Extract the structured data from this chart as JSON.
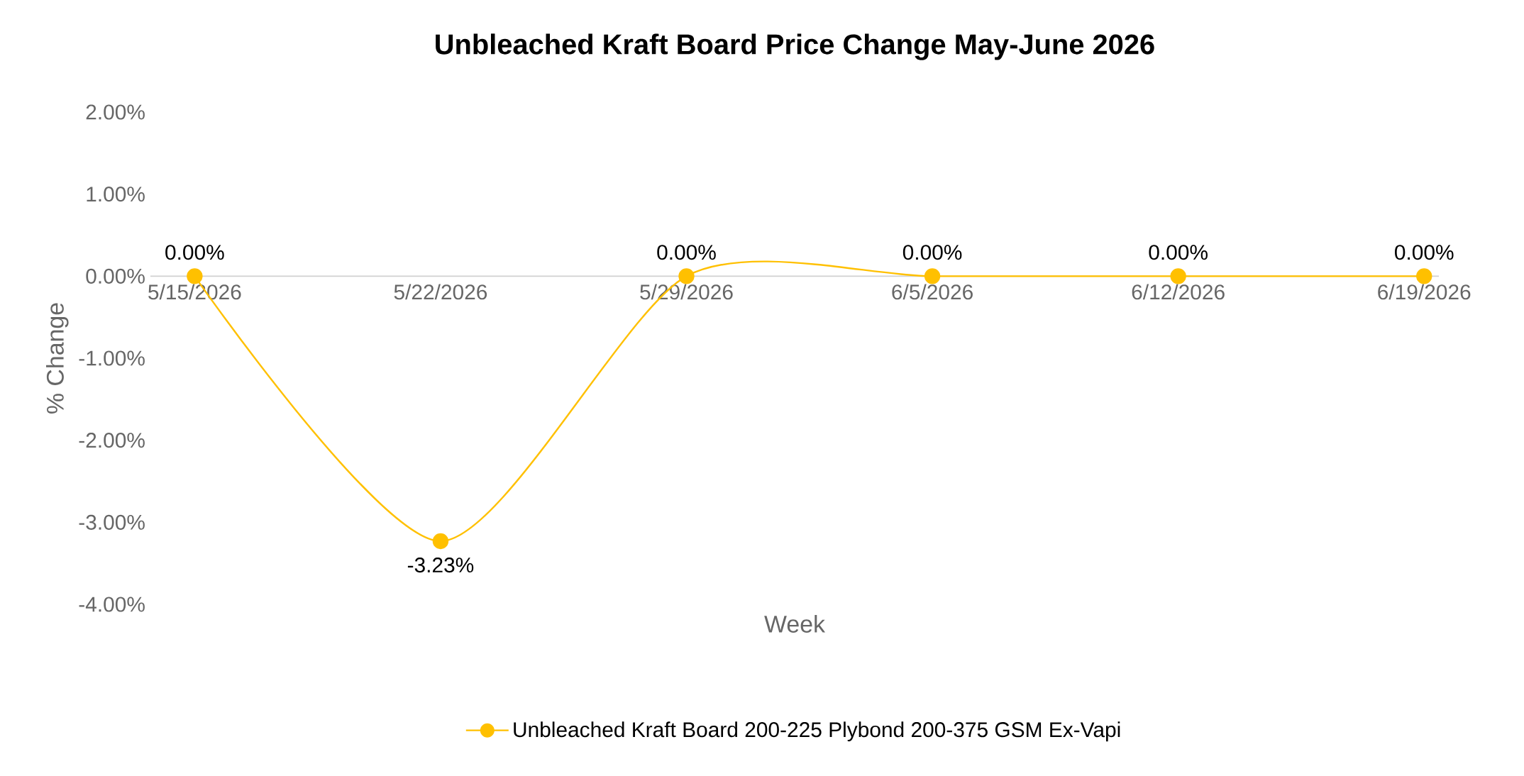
{
  "chart_data": {
    "type": "line",
    "title": "Unbleached Kraft Board Price Change May-June 2026",
    "xlabel": "Week",
    "ylabel": "% Change",
    "categories": [
      "5/15/2026",
      "5/22/2026",
      "5/29/2026",
      "6/5/2026",
      "6/12/2026",
      "6/19/2026"
    ],
    "series": [
      {
        "name": "Unbleached Kraft Board 200-225 Plybond 200-375 GSM Ex-Vapi",
        "color": "#ffc000",
        "values": [
          0,
          -3.23,
          0,
          0,
          0,
          0
        ],
        "value_labels": [
          "0.00%",
          "-3.23%",
          "0.00%",
          "0.00%",
          "0.00%",
          "0.00%"
        ]
      }
    ],
    "ylim": [
      -4,
      2
    ],
    "yticks": [
      {
        "value": -4,
        "label": "-4.00%"
      },
      {
        "value": -3,
        "label": "-3.00%"
      },
      {
        "value": -2,
        "label": "-2.00%"
      },
      {
        "value": -1,
        "label": "-1.00%"
      },
      {
        "value": 0,
        "label": "0.00%"
      },
      {
        "value": 1,
        "label": "1.00%"
      },
      {
        "value": 2,
        "label": "2.00%"
      }
    ],
    "grid": false,
    "legend": "bottom",
    "marker": "circle",
    "line_style": "solid"
  }
}
